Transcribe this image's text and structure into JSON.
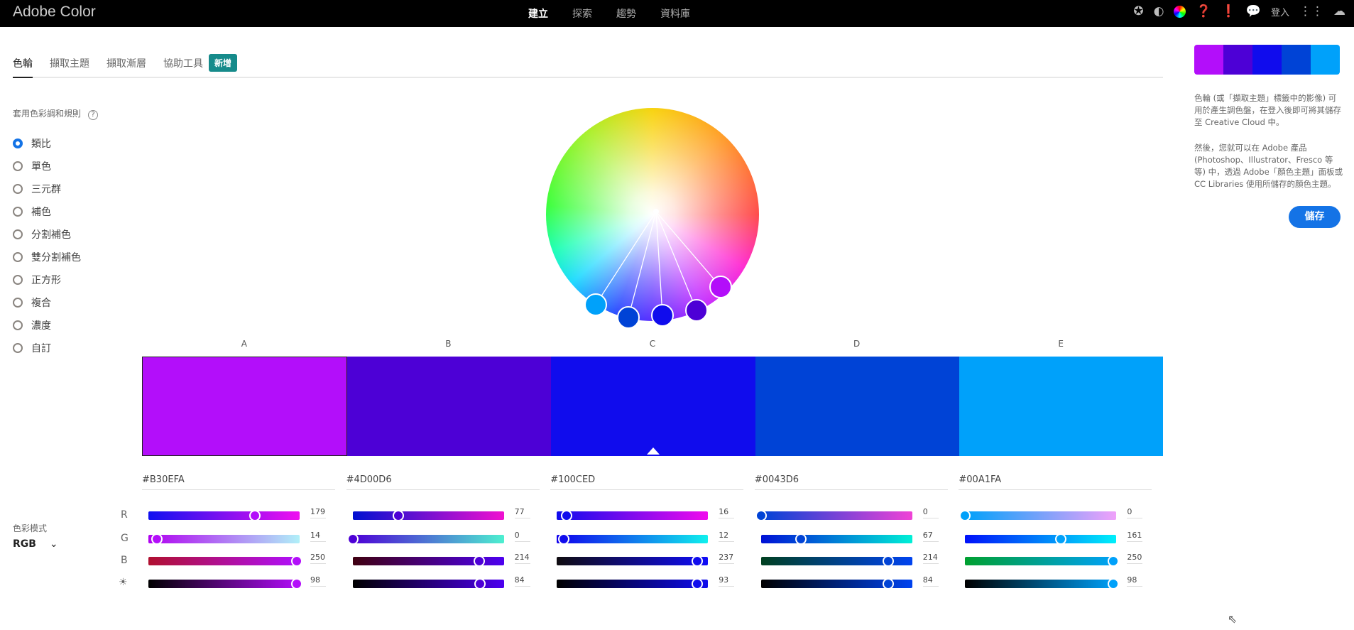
{
  "app": {
    "title": "Adobe Color"
  },
  "nav": [
    "建立",
    "探索",
    "趨勢",
    "資料庫"
  ],
  "topicons": [
    "star-icon",
    "contrast-icon",
    "color-wheel-icon",
    "help-icon",
    "feedback-icon",
    "chat-icon"
  ],
  "login": "登入",
  "tabs": [
    "色輪",
    "擷取主題",
    "擷取漸層",
    "協助工具"
  ],
  "badge": "新增",
  "rules": {
    "label": "套用色彩調和規則",
    "help": "?",
    "items": [
      "類比",
      "單色",
      "三元群",
      "補色",
      "分割補色",
      "雙分割補色",
      "正方形",
      "複合",
      "濃度",
      "自訂"
    ],
    "selected": 0
  },
  "mode": {
    "label": "色彩模式",
    "value": "RGB"
  },
  "channels": [
    "R",
    "G",
    "B"
  ],
  "swatches": [
    {
      "letter": "A",
      "hex": "#B30EFA",
      "color": "#B30EFA",
      "r": 179,
      "g": 14,
      "b": 250,
      "v": 98,
      "grad": {
        "r": [
          "#1010f0",
          "#f010f0"
        ],
        "g": [
          "#b000f0",
          "#b0f0f8"
        ],
        "b": [
          "#b01030",
          "#b010ff"
        ],
        "v": [
          "#000000",
          "#b30efa"
        ]
      }
    },
    {
      "letter": "B",
      "hex": "#4D00D6",
      "color": "#4D00D6",
      "r": 77,
      "g": 0,
      "b": 214,
      "v": 84,
      "grad": {
        "r": [
          "#0010d0",
          "#f010d0"
        ],
        "g": [
          "#4d00d6",
          "#4df0d0"
        ],
        "b": [
          "#400010",
          "#4d00f0"
        ],
        "v": [
          "#000000",
          "#4d00f0"
        ]
      }
    },
    {
      "letter": "C",
      "hex": "#100CED",
      "color": "#100CED",
      "r": 16,
      "g": 12,
      "b": 237,
      "v": 93,
      "grad": {
        "r": [
          "#100ced",
          "#f00ced"
        ],
        "g": [
          "#1000ed",
          "#10f0ed"
        ],
        "b": [
          "#100c10",
          "#100cf8"
        ],
        "v": [
          "#000000",
          "#100ced"
        ]
      }
    },
    {
      "letter": "D",
      "hex": "#0043D6",
      "color": "#0043D6",
      "r": 0,
      "g": 67,
      "b": 214,
      "v": 84,
      "grad": {
        "r": [
          "#0043d6",
          "#f043d6"
        ],
        "g": [
          "#0010d6",
          "#00f0d6"
        ],
        "b": [
          "#004020",
          "#0043f0"
        ],
        "v": [
          "#000000",
          "#0043f0"
        ]
      }
    },
    {
      "letter": "E",
      "hex": "#00A1FA",
      "color": "#00A1FA",
      "r": 0,
      "g": 161,
      "b": 250,
      "v": 98,
      "grad": {
        "r": [
          "#00a1fa",
          "#f0a1fa"
        ],
        "g": [
          "#0010fa",
          "#00f0fa"
        ],
        "b": [
          "#00a030",
          "#00a1fa"
        ],
        "v": [
          "#000000",
          "#00a1fa"
        ]
      }
    }
  ],
  "selected_swatch": 2,
  "right": {
    "p1": "色輪 (或「擷取主題」標籤中的影像) 可用於產生調色盤，在登入後即可將其儲存至 Creative Cloud 中。",
    "p2": "然後，您就可以在 Adobe 產品 (Photoshop、Illustrator、Fresco 等等) 中，透過 Adobe「顏色主題」面板或 CC Libraries 使用所儲存的顏色主題。",
    "save": "儲存"
  }
}
